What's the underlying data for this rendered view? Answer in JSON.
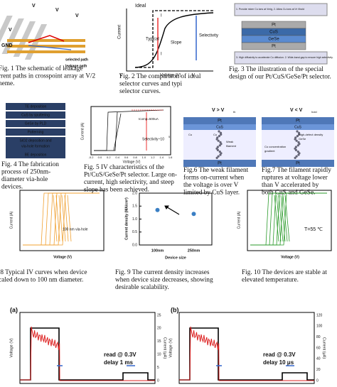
{
  "fig1": {
    "labels": [
      "V",
      "V",
      "V",
      "V",
      "GND",
      "selected path",
      "leakage path"
    ],
    "caption": [
      "Fig. 1  The schematic of leakage",
      "rrent paths in crosspoint array at V/2",
      "heme."
    ]
  },
  "fig2": {
    "labels": [
      "Ideal",
      "I",
      "Typical",
      "Slope",
      "I",
      "Selectivity",
      "Current",
      "Voltage (V)",
      "V",
      "V"
    ],
    "caption": [
      "Fig. 2 The comparison of ideal",
      "selector curves and typi",
      "selector curves."
    ]
  },
  "fig3": {
    "boxes": [
      "1. Provide mixer Cu ions at Vmig, 2. Allow Cu ions at Vr Vbold",
      "Pt",
      "CuS",
      "GeSe",
      "Pt",
      "3. High diffusivity to accelerate Cu diffusion. 2. Wide-band-gap to ensure high selectivity."
    ],
    "caption": [
      "Fig. 3  The illustration of the special",
      "design of our Pt/CuS/GeSe/Pt selector."
    ]
  },
  "fig4": {
    "steps": [
      "TE deposition",
      "CuS by sputtering",
      "GeSe by PLD",
      "Patterning",
      "SiO2 deposition and",
      "via-hole formation",
      "BE deposition"
    ],
    "caption": [
      "Fig. 4 The fabrication",
      "process of 250nm-",
      "diameter    via-hole",
      "devices."
    ]
  },
  "fig5": {
    "labels": [
      "Current (A)",
      "Voltage (V)",
      "Icomp=500uA",
      "Selectivity~10",
      "5"
    ],
    "xticks": [
      "-0.2",
      "0.0",
      "0.2",
      "0.4",
      "0.6",
      "0.8",
      "1.0",
      "1.2",
      "1.4",
      "1.6"
    ],
    "caption": [
      "Fig.  5  IV characteristics of the",
      "Pt/CuS/GeSe/Pt  selector.  Large  on-",
      "current,  high  selectivity,  and  steep",
      "slope has been achieved."
    ]
  },
  "fig6": {
    "labels": [
      "V > V",
      "th",
      "Pt",
      "CuS",
      "Cu",
      "Cu",
      "Weak",
      "filament",
      "Pt"
    ],
    "caption": [
      "Fig.6 The weak filament",
      "forms  on-current  when",
      "the  voltage  is  over  V",
      "limited by CuS layer."
    ]
  },
  "fig7": {
    "labels": [
      "V < V",
      "hold",
      "Pt",
      "CuS",
      "High-defect density",
      "GeSe",
      "Cu concentration",
      "gradient",
      "Pt"
    ],
    "caption": [
      "Fig.7 The filament rapidly",
      "ruptures at voltage lower",
      "than  V     accelerated by",
      "both CuS and GeSe."
    ]
  },
  "fig8": {
    "labels": [
      "Current (A)",
      "Voltage (V)",
      "100 nm via-hole"
    ],
    "caption": [
      ".8 Typical IV curves when device",
      "caled down to 100 nm diameter."
    ]
  },
  "fig9": {
    "chart_data": {
      "type": "scatter",
      "ylabel": "Current density (MA/cm²)",
      "xlabel": "Device size",
      "categories": [
        "100nm",
        "250nm"
      ],
      "values": [
        1.35,
        1.2
      ],
      "color": "#3a7fc4",
      "ylim": [
        0,
        2
      ],
      "yticks": [
        {
          "value": 0,
          "label": "0.0"
        },
        {
          "value": 0.5,
          "label": "0.5"
        },
        {
          "value": 1,
          "label": "1.0"
        },
        {
          "value": 1.5,
          "label": "1.5"
        },
        {
          "value": 2,
          "label": "2.0"
        }
      ]
    },
    "caption": [
      "Fig. 9  The current density increases",
      "when device size decreases, showing",
      "desirable scalability."
    ]
  },
  "fig10": {
    "labels": [
      "Current (A)",
      "Voltage (V)",
      "T=55 ℃"
    ],
    "caption": [
      "Fig.  10  The  devices  are  stable  at",
      "elevated temperature."
    ]
  },
  "panels": [
    {
      "tag": "(a)",
      "ylabel": "Voltage (V)",
      "y2label": "Current (μA)",
      "read": "read @ 0.3V",
      "delay": "delay 1 ms",
      "y2ticks": [
        "0",
        "5",
        "10",
        "15",
        "20",
        "25"
      ]
    },
    {
      "tag": "(b)",
      "ylabel": "Voltage (V)",
      "y2label": "Current (μA)",
      "read": "read @ 0.3V",
      "delay": "delay 10 μs",
      "y2ticks": [
        "0",
        "20",
        "40",
        "60",
        "80",
        "100",
        "120"
      ]
    }
  ]
}
